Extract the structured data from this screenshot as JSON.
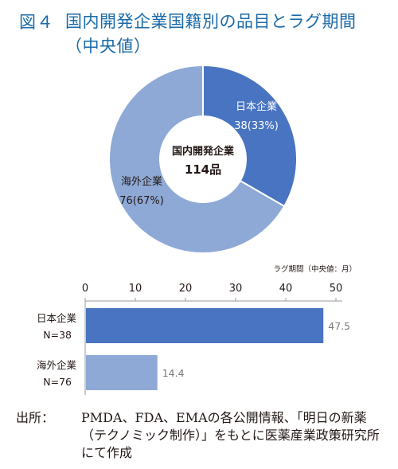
{
  "figure": {
    "label": "図４",
    "title": "国内開発企業国籍別の品目とラグ期間（中央値）"
  },
  "colors": {
    "japan": "#4874c1",
    "overseas": "#8ea9d6",
    "title_blue": "#1a6aa8",
    "axis_gray": "#9a9a9a"
  },
  "chart_data": [
    {
      "type": "pie",
      "center_label": "国内開発企業",
      "center_total": "114品",
      "slices": [
        {
          "name": "日本企業",
          "value": 38,
          "value_label": "38(33%)",
          "percent": 33
        },
        {
          "name": "海外企業",
          "value": 76,
          "value_label": "76(67%)",
          "percent": 67
        }
      ]
    },
    {
      "type": "bar",
      "orientation": "horizontal",
      "axis_title": "ラグ期間（中央値：月）",
      "xlim": [
        0,
        50
      ],
      "ticks": [
        "0",
        "10",
        "20",
        "30",
        "40",
        "50"
      ],
      "tick_values": [
        0,
        10,
        20,
        30,
        40,
        50
      ],
      "categories": [
        {
          "name": "日本企業",
          "n": "N=38"
        },
        {
          "name": "海外企業",
          "n": "N=76"
        }
      ],
      "values": [
        47.5,
        14.4
      ],
      "value_labels": [
        "47.5",
        "14.4"
      ]
    }
  ],
  "source": {
    "label": "出所：",
    "text": "PMDA、FDA、EMAの各公開情報、「明日の新薬（テクノミック制作）」をもとに医薬産業政策研究所にて作成"
  }
}
